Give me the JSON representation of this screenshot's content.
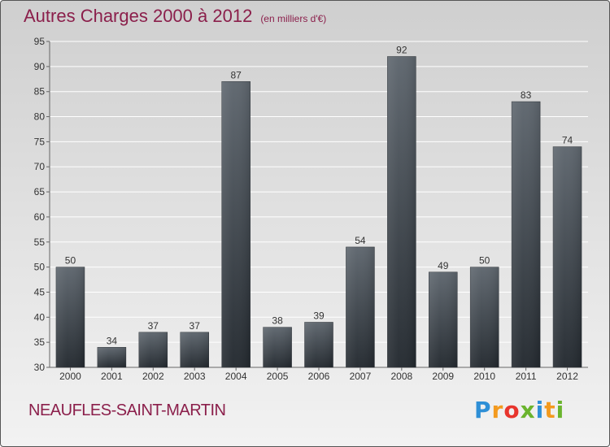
{
  "header": {
    "title": "Autres Charges 2000 à 2012",
    "subtitle": "(en milliers d'€)"
  },
  "footer": {
    "place": "NEAUFLES-SAINT-MARTIN"
  },
  "logo": {
    "letters": [
      "P",
      "r",
      "o",
      "x",
      "i",
      "t",
      "i"
    ],
    "colors": [
      "#2e8fd6",
      "#f39a1e",
      "#e8352d",
      "#6ab42d",
      "#2e8fd6",
      "#f39a1e",
      "#6ab42d"
    ]
  },
  "chart_data": {
    "type": "bar",
    "title": "Autres Charges 2000 à 2012",
    "subtitle": "(en milliers d'€)",
    "categories": [
      "2000",
      "2001",
      "2002",
      "2003",
      "2004",
      "2005",
      "2006",
      "2007",
      "2008",
      "2009",
      "2010",
      "2011",
      "2012"
    ],
    "values": [
      50,
      34,
      37,
      37,
      87,
      38,
      39,
      54,
      92,
      49,
      50,
      83,
      74
    ],
    "ylim": [
      30,
      95
    ],
    "yticks": [
      30,
      35,
      40,
      45,
      50,
      55,
      60,
      65,
      70,
      75,
      80,
      85,
      90,
      95
    ],
    "grid": true,
    "xlabel": "",
    "ylabel": ""
  }
}
